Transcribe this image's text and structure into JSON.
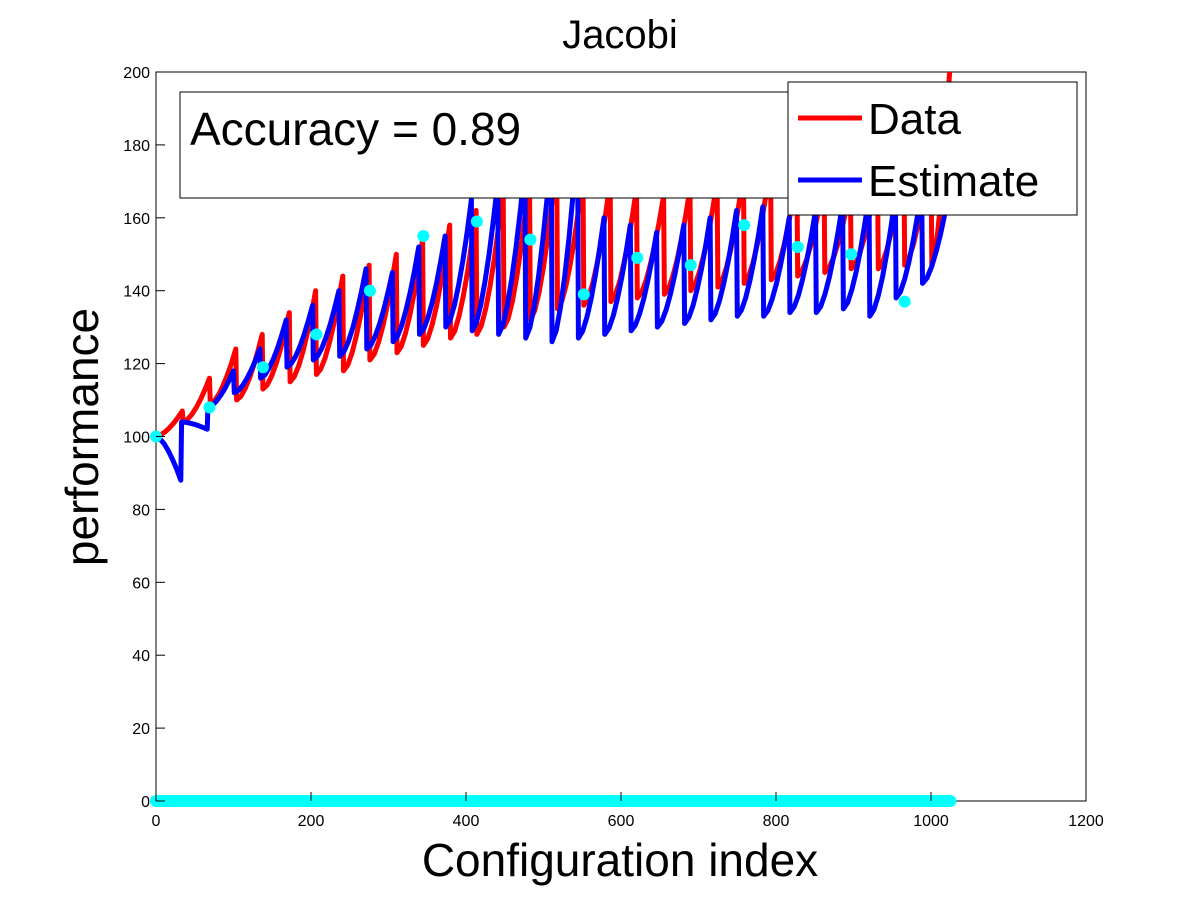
{
  "chart_data": {
    "type": "line",
    "title": "Jacobi",
    "xlabel": "Configuration index",
    "ylabel": "performance",
    "xlim": [
      0,
      1200
    ],
    "ylim": [
      0,
      200
    ],
    "xticks": [
      0,
      200,
      400,
      600,
      800,
      1000,
      1200
    ],
    "yticks": [
      0,
      20,
      40,
      60,
      80,
      100,
      120,
      140,
      160,
      180,
      200
    ],
    "grid": false,
    "legend_position": "top-right",
    "annotation": "Accuracy = 0.89",
    "n_points": 1025,
    "series": [
      {
        "name": "Data",
        "color": "#ff0000",
        "segments": [
          {
            "x_start": 0,
            "x_end": 34,
            "y_start": 100,
            "y_end": 107
          },
          {
            "x_start": 35,
            "x_end": 69,
            "y_start": 104,
            "y_end": 116
          },
          {
            "x_start": 70,
            "x_end": 103,
            "y_start": 109,
            "y_end": 124
          },
          {
            "x_start": 104,
            "x_end": 137,
            "y_start": 110,
            "y_end": 128
          },
          {
            "x_start": 138,
            "x_end": 172,
            "y_start": 113,
            "y_end": 134
          },
          {
            "x_start": 173,
            "x_end": 206,
            "y_start": 115,
            "y_end": 140
          },
          {
            "x_start": 207,
            "x_end": 241,
            "y_start": 117,
            "y_end": 144
          },
          {
            "x_start": 242,
            "x_end": 275,
            "y_start": 118,
            "y_end": 147
          },
          {
            "x_start": 276,
            "x_end": 310,
            "y_start": 121,
            "y_end": 150
          },
          {
            "x_start": 311,
            "x_end": 344,
            "y_start": 123,
            "y_end": 154
          },
          {
            "x_start": 345,
            "x_end": 379,
            "y_start": 125,
            "y_end": 158
          },
          {
            "x_start": 380,
            "x_end": 413,
            "y_start": 127,
            "y_end": 162
          },
          {
            "x_start": 414,
            "x_end": 448,
            "y_start": 128,
            "y_end": 168
          },
          {
            "x_start": 449,
            "x_end": 482,
            "y_start": 130,
            "y_end": 172
          },
          {
            "x_start": 483,
            "x_end": 517,
            "y_start": 132,
            "y_end": 176
          },
          {
            "x_start": 518,
            "x_end": 551,
            "y_start": 135,
            "y_end": 172
          },
          {
            "x_start": 552,
            "x_end": 586,
            "y_start": 136,
            "y_end": 170
          },
          {
            "x_start": 587,
            "x_end": 620,
            "y_start": 137,
            "y_end": 168
          },
          {
            "x_start": 621,
            "x_end": 655,
            "y_start": 138,
            "y_end": 166
          },
          {
            "x_start": 656,
            "x_end": 689,
            "y_start": 139,
            "y_end": 168
          },
          {
            "x_start": 690,
            "x_end": 724,
            "y_start": 140,
            "y_end": 170
          },
          {
            "x_start": 725,
            "x_end": 758,
            "y_start": 141,
            "y_end": 172
          },
          {
            "x_start": 759,
            "x_end": 793,
            "y_start": 142,
            "y_end": 175
          },
          {
            "x_start": 794,
            "x_end": 827,
            "y_start": 143,
            "y_end": 172
          },
          {
            "x_start": 828,
            "x_end": 862,
            "y_start": 144,
            "y_end": 170
          },
          {
            "x_start": 863,
            "x_end": 896,
            "y_start": 145,
            "y_end": 168
          },
          {
            "x_start": 897,
            "x_end": 931,
            "y_start": 146,
            "y_end": 172
          },
          {
            "x_start": 932,
            "x_end": 965,
            "y_start": 146,
            "y_end": 176
          },
          {
            "x_start": 966,
            "x_end": 1000,
            "y_start": 147,
            "y_end": 180
          },
          {
            "x_start": 1001,
            "x_end": 1024,
            "y_start": 147,
            "y_end": 200
          }
        ]
      },
      {
        "name": "Estimate",
        "color": "#0000ff",
        "segments": [
          {
            "x_start": 0,
            "x_end": 32,
            "y_start": 100,
            "y_end": 88
          },
          {
            "x_start": 33,
            "x_end": 66,
            "y_start": 104,
            "y_end": 102
          },
          {
            "x_start": 67,
            "x_end": 100,
            "y_start": 108,
            "y_end": 118
          },
          {
            "x_start": 101,
            "x_end": 134,
            "y_start": 112,
            "y_end": 124
          },
          {
            "x_start": 135,
            "x_end": 168,
            "y_start": 116,
            "y_end": 132
          },
          {
            "x_start": 169,
            "x_end": 202,
            "y_start": 119,
            "y_end": 136
          },
          {
            "x_start": 203,
            "x_end": 236,
            "y_start": 121,
            "y_end": 140
          },
          {
            "x_start": 237,
            "x_end": 271,
            "y_start": 122,
            "y_end": 146
          },
          {
            "x_start": 272,
            "x_end": 305,
            "y_start": 124,
            "y_end": 145
          },
          {
            "x_start": 306,
            "x_end": 339,
            "y_start": 126,
            "y_end": 152
          },
          {
            "x_start": 340,
            "x_end": 373,
            "y_start": 128,
            "y_end": 155
          },
          {
            "x_start": 374,
            "x_end": 407,
            "y_start": 130,
            "y_end": 165
          },
          {
            "x_start": 408,
            "x_end": 441,
            "y_start": 129,
            "y_end": 170
          },
          {
            "x_start": 442,
            "x_end": 476,
            "y_start": 128,
            "y_end": 174
          },
          {
            "x_start": 477,
            "x_end": 510,
            "y_start": 127,
            "y_end": 178
          },
          {
            "x_start": 511,
            "x_end": 544,
            "y_start": 126,
            "y_end": 181
          },
          {
            "x_start": 545,
            "x_end": 578,
            "y_start": 127,
            "y_end": 160
          },
          {
            "x_start": 579,
            "x_end": 612,
            "y_start": 128,
            "y_end": 158
          },
          {
            "x_start": 613,
            "x_end": 646,
            "y_start": 129,
            "y_end": 156
          },
          {
            "x_start": 647,
            "x_end": 681,
            "y_start": 130,
            "y_end": 158
          },
          {
            "x_start": 682,
            "x_end": 715,
            "y_start": 131,
            "y_end": 160
          },
          {
            "x_start": 716,
            "x_end": 749,
            "y_start": 132,
            "y_end": 162
          },
          {
            "x_start": 750,
            "x_end": 783,
            "y_start": 133,
            "y_end": 163
          },
          {
            "x_start": 784,
            "x_end": 817,
            "y_start": 133,
            "y_end": 160
          },
          {
            "x_start": 818,
            "x_end": 851,
            "y_start": 134,
            "y_end": 162
          },
          {
            "x_start": 852,
            "x_end": 886,
            "y_start": 134,
            "y_end": 164
          },
          {
            "x_start": 887,
            "x_end": 920,
            "y_start": 135,
            "y_end": 166
          },
          {
            "x_start": 921,
            "x_end": 954,
            "y_start": 133,
            "y_end": 166
          },
          {
            "x_start": 955,
            "x_end": 988,
            "y_start": 138,
            "y_end": 168
          },
          {
            "x_start": 989,
            "x_end": 1024,
            "y_start": 142,
            "y_end": 168
          }
        ]
      }
    ],
    "markers": {
      "color": "#00ffff",
      "points": [
        {
          "x": 0,
          "y": 100
        },
        {
          "x": 69,
          "y": 108
        },
        {
          "x": 138,
          "y": 119
        },
        {
          "x": 207,
          "y": 128
        },
        {
          "x": 276,
          "y": 140
        },
        {
          "x": 345,
          "y": 155
        },
        {
          "x": 414,
          "y": 159
        },
        {
          "x": 483,
          "y": 154
        },
        {
          "x": 552,
          "y": 139
        },
        {
          "x": 621,
          "y": 149
        },
        {
          "x": 690,
          "y": 147
        },
        {
          "x": 759,
          "y": 158
        },
        {
          "x": 828,
          "y": 152
        },
        {
          "x": 897,
          "y": 150
        },
        {
          "x": 966,
          "y": 137
        }
      ],
      "baseline": {
        "y": 0,
        "x_start": 0,
        "x_end": 1025
      }
    }
  }
}
